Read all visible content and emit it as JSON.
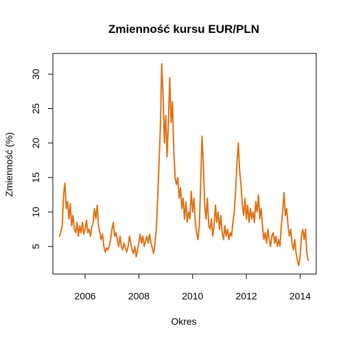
{
  "chart_data": {
    "type": "line",
    "title": "Zmienność kursu EUR/PLN",
    "xlabel": "Okres",
    "ylabel": "Zmienność (%)",
    "xlim": [
      2004.8,
      2014.6
    ],
    "ylim": [
      1.0,
      33.0
    ],
    "x_ticks": [
      2006,
      2008,
      2010,
      2012,
      2014
    ],
    "x_tick_labels": [
      "2006",
      "2008",
      "2010",
      "2012",
      "2014"
    ],
    "y_ticks": [
      5,
      10,
      15,
      20,
      25,
      30
    ],
    "y_tick_labels": [
      "5",
      "10",
      "15",
      "20",
      "25",
      "30"
    ],
    "grid": false,
    "line_color": "#E07010",
    "series": [
      {
        "points": [
          [
            2005.05,
            6.5
          ],
          [
            2005.1,
            7.2
          ],
          [
            2005.15,
            8.0
          ],
          [
            2005.2,
            12.5
          ],
          [
            2005.25,
            14.2
          ],
          [
            2005.3,
            10.5
          ],
          [
            2005.35,
            11.5
          ],
          [
            2005.4,
            9.0
          ],
          [
            2005.45,
            11.2
          ],
          [
            2005.5,
            8.0
          ],
          [
            2005.55,
            9.5
          ],
          [
            2005.6,
            7.5
          ],
          [
            2005.65,
            7.0
          ],
          [
            2005.7,
            8.5
          ],
          [
            2005.75,
            6.5
          ],
          [
            2005.8,
            8.0
          ],
          [
            2005.85,
            7.0
          ],
          [
            2005.9,
            8.5
          ],
          [
            2005.95,
            6.8
          ],
          [
            2006.0,
            7.5
          ],
          [
            2006.05,
            8.8
          ],
          [
            2006.1,
            7.0
          ],
          [
            2006.15,
            7.5
          ],
          [
            2006.2,
            6.5
          ],
          [
            2006.25,
            7.8
          ],
          [
            2006.3,
            8.5
          ],
          [
            2006.35,
            10.5
          ],
          [
            2006.4,
            9.0
          ],
          [
            2006.45,
            11.0
          ],
          [
            2006.5,
            8.0
          ],
          [
            2006.55,
            7.0
          ],
          [
            2006.6,
            6.0
          ],
          [
            2006.65,
            6.8
          ],
          [
            2006.7,
            5.0
          ],
          [
            2006.75,
            4.2
          ],
          [
            2006.8,
            4.8
          ],
          [
            2006.85,
            4.5
          ],
          [
            2006.9,
            5.0
          ],
          [
            2006.95,
            6.0
          ],
          [
            2007.0,
            7.5
          ],
          [
            2007.05,
            8.5
          ],
          [
            2007.1,
            6.5
          ],
          [
            2007.15,
            7.0
          ],
          [
            2007.2,
            6.0
          ],
          [
            2007.25,
            5.0
          ],
          [
            2007.3,
            6.5
          ],
          [
            2007.35,
            5.0
          ],
          [
            2007.4,
            4.5
          ],
          [
            2007.45,
            5.5
          ],
          [
            2007.5,
            4.8
          ],
          [
            2007.55,
            4.2
          ],
          [
            2007.6,
            5.0
          ],
          [
            2007.65,
            6.5
          ],
          [
            2007.7,
            5.5
          ],
          [
            2007.75,
            4.5
          ],
          [
            2007.8,
            4.0
          ],
          [
            2007.85,
            5.0
          ],
          [
            2007.9,
            3.5
          ],
          [
            2007.95,
            4.5
          ],
          [
            2008.0,
            5.5
          ],
          [
            2008.05,
            6.8
          ],
          [
            2008.1,
            5.5
          ],
          [
            2008.15,
            6.5
          ],
          [
            2008.2,
            5.0
          ],
          [
            2008.25,
            5.8
          ],
          [
            2008.3,
            6.5
          ],
          [
            2008.35,
            5.5
          ],
          [
            2008.4,
            6.8
          ],
          [
            2008.45,
            5.5
          ],
          [
            2008.5,
            4.8
          ],
          [
            2008.55,
            4.0
          ],
          [
            2008.6,
            5.5
          ],
          [
            2008.65,
            7.5
          ],
          [
            2008.7,
            12.0
          ],
          [
            2008.75,
            17.0
          ],
          [
            2008.8,
            22.0
          ],
          [
            2008.85,
            31.5
          ],
          [
            2008.9,
            27.0
          ],
          [
            2008.95,
            20.0
          ],
          [
            2009.0,
            24.0
          ],
          [
            2009.05,
            18.0
          ],
          [
            2009.1,
            23.0
          ],
          [
            2009.15,
            29.5
          ],
          [
            2009.2,
            23.0
          ],
          [
            2009.25,
            26.0
          ],
          [
            2009.3,
            19.0
          ],
          [
            2009.35,
            15.0
          ],
          [
            2009.4,
            14.0
          ],
          [
            2009.45,
            15.0
          ],
          [
            2009.5,
            12.0
          ],
          [
            2009.55,
            13.5
          ],
          [
            2009.6,
            10.5
          ],
          [
            2009.65,
            12.0
          ],
          [
            2009.7,
            9.0
          ],
          [
            2009.75,
            11.5
          ],
          [
            2009.8,
            8.5
          ],
          [
            2009.85,
            10.0
          ],
          [
            2009.9,
            9.0
          ],
          [
            2009.95,
            13.0
          ],
          [
            2010.0,
            10.0
          ],
          [
            2010.05,
            12.0
          ],
          [
            2010.1,
            8.5
          ],
          [
            2010.15,
            7.0
          ],
          [
            2010.2,
            6.0
          ],
          [
            2010.25,
            8.0
          ],
          [
            2010.3,
            14.0
          ],
          [
            2010.35,
            21.0
          ],
          [
            2010.4,
            17.0
          ],
          [
            2010.45,
            11.0
          ],
          [
            2010.5,
            9.0
          ],
          [
            2010.55,
            12.0
          ],
          [
            2010.6,
            8.0
          ],
          [
            2010.65,
            7.5
          ],
          [
            2010.7,
            9.0
          ],
          [
            2010.75,
            6.5
          ],
          [
            2010.8,
            8.0
          ],
          [
            2010.85,
            11.0
          ],
          [
            2010.9,
            8.5
          ],
          [
            2010.95,
            10.0
          ],
          [
            2011.0,
            7.5
          ],
          [
            2011.05,
            9.5
          ],
          [
            2011.1,
            7.0
          ],
          [
            2011.15,
            6.0
          ],
          [
            2011.2,
            8.0
          ],
          [
            2011.25,
            6.5
          ],
          [
            2011.3,
            7.5
          ],
          [
            2011.35,
            6.0
          ],
          [
            2011.4,
            7.0
          ],
          [
            2011.45,
            6.5
          ],
          [
            2011.5,
            8.5
          ],
          [
            2011.55,
            10.0
          ],
          [
            2011.6,
            13.0
          ],
          [
            2011.65,
            17.0
          ],
          [
            2011.7,
            20.0
          ],
          [
            2011.75,
            16.0
          ],
          [
            2011.8,
            14.0
          ],
          [
            2011.85,
            11.0
          ],
          [
            2011.9,
            9.5
          ],
          [
            2011.95,
            12.0
          ],
          [
            2012.0,
            9.0
          ],
          [
            2012.05,
            11.0
          ],
          [
            2012.1,
            8.5
          ],
          [
            2012.15,
            10.5
          ],
          [
            2012.2,
            9.0
          ],
          [
            2012.25,
            10.0
          ],
          [
            2012.3,
            8.5
          ],
          [
            2012.35,
            11.5
          ],
          [
            2012.4,
            10.0
          ],
          [
            2012.45,
            12.5
          ],
          [
            2012.5,
            9.0
          ],
          [
            2012.55,
            10.5
          ],
          [
            2012.6,
            8.0
          ],
          [
            2012.65,
            6.0
          ],
          [
            2012.7,
            7.0
          ],
          [
            2012.75,
            5.5
          ],
          [
            2012.8,
            7.5
          ],
          [
            2012.85,
            6.0
          ],
          [
            2012.9,
            5.0
          ],
          [
            2012.95,
            6.5
          ],
          [
            2013.0,
            7.0
          ],
          [
            2013.05,
            5.5
          ],
          [
            2013.1,
            6.5
          ],
          [
            2013.15,
            5.0
          ],
          [
            2013.2,
            6.0
          ],
          [
            2013.25,
            5.0
          ],
          [
            2013.3,
            8.0
          ],
          [
            2013.35,
            10.0
          ],
          [
            2013.4,
            12.8
          ],
          [
            2013.45,
            9.5
          ],
          [
            2013.5,
            10.5
          ],
          [
            2013.55,
            8.0
          ],
          [
            2013.6,
            6.5
          ],
          [
            2013.65,
            7.5
          ],
          [
            2013.7,
            5.5
          ],
          [
            2013.75,
            4.5
          ],
          [
            2013.8,
            6.0
          ],
          [
            2013.85,
            4.0
          ],
          [
            2013.9,
            3.0
          ],
          [
            2013.95,
            2.2
          ],
          [
            2014.0,
            3.5
          ],
          [
            2014.05,
            6.5
          ],
          [
            2014.1,
            7.5
          ],
          [
            2014.15,
            6.0
          ],
          [
            2014.2,
            7.5
          ],
          [
            2014.25,
            4.0
          ],
          [
            2014.3,
            3.0
          ]
        ]
      }
    ]
  }
}
